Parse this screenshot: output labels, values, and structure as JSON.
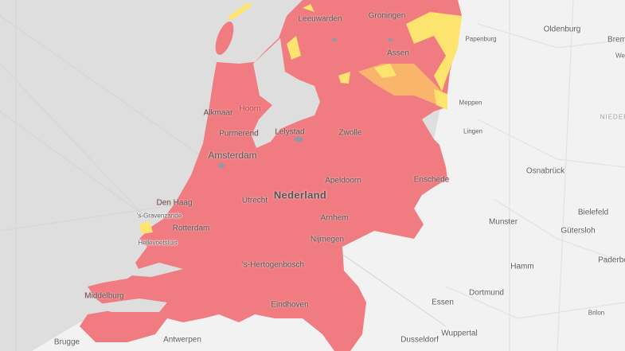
{
  "map": {
    "colors": {
      "sea": "#dedede",
      "land": "#f2f2f2",
      "high": "#f07b80",
      "medium": "#f8b56b",
      "low": "#fde46e",
      "water": "#8f99a8"
    },
    "labels": {
      "leeuwarden": "Leeuwarden",
      "groningen": "Groningen",
      "assen": "Assen",
      "papenburg": "Papenburg",
      "oldenburg": "Oldenburg",
      "bremen": "Brem",
      "we": "We",
      "meppen": "Meppen",
      "lingen": "Lingen",
      "nieders": "NIEDERS",
      "alkmaar": "Alkmaar",
      "hoorn": "Hoorn",
      "purmerend": "Purmerend",
      "lelystad": "Lelystad",
      "zwolle": "Zwolle",
      "amsterdam": "Amsterdam",
      "apeldoorn": "Apeldoorn",
      "enschede": "Enschede",
      "osnabruck": "Osnabrück",
      "nederland": "Nederland",
      "utrecht": "Utrecht",
      "denhaag": "Den Haag",
      "gravenzande": "'s-Gravenzande",
      "rotterdam": "Rotterdam",
      "hellevoetsluis": "Hellevoetsluis",
      "arnhem": "Arnhem",
      "nijmegen": "Nijmegen",
      "munster": "Munster",
      "bielefeld": "Bielefeld",
      "gutersloh": "Gütersloh",
      "paderborn": "Paderbo",
      "hertogenbosch": "'s-Hertogenbosch",
      "hamm": "Hamm",
      "middelburg": "Middelburg",
      "dortmund": "Dortmund",
      "essen": "Essen",
      "eindhoven": "Eindhoven",
      "brilon": "Brilon",
      "brugge": "Brugge",
      "antwerpen": "Antwerpen",
      "dusseldorf": "Dusseldorf",
      "wuppertal": "Wuppertal"
    }
  }
}
